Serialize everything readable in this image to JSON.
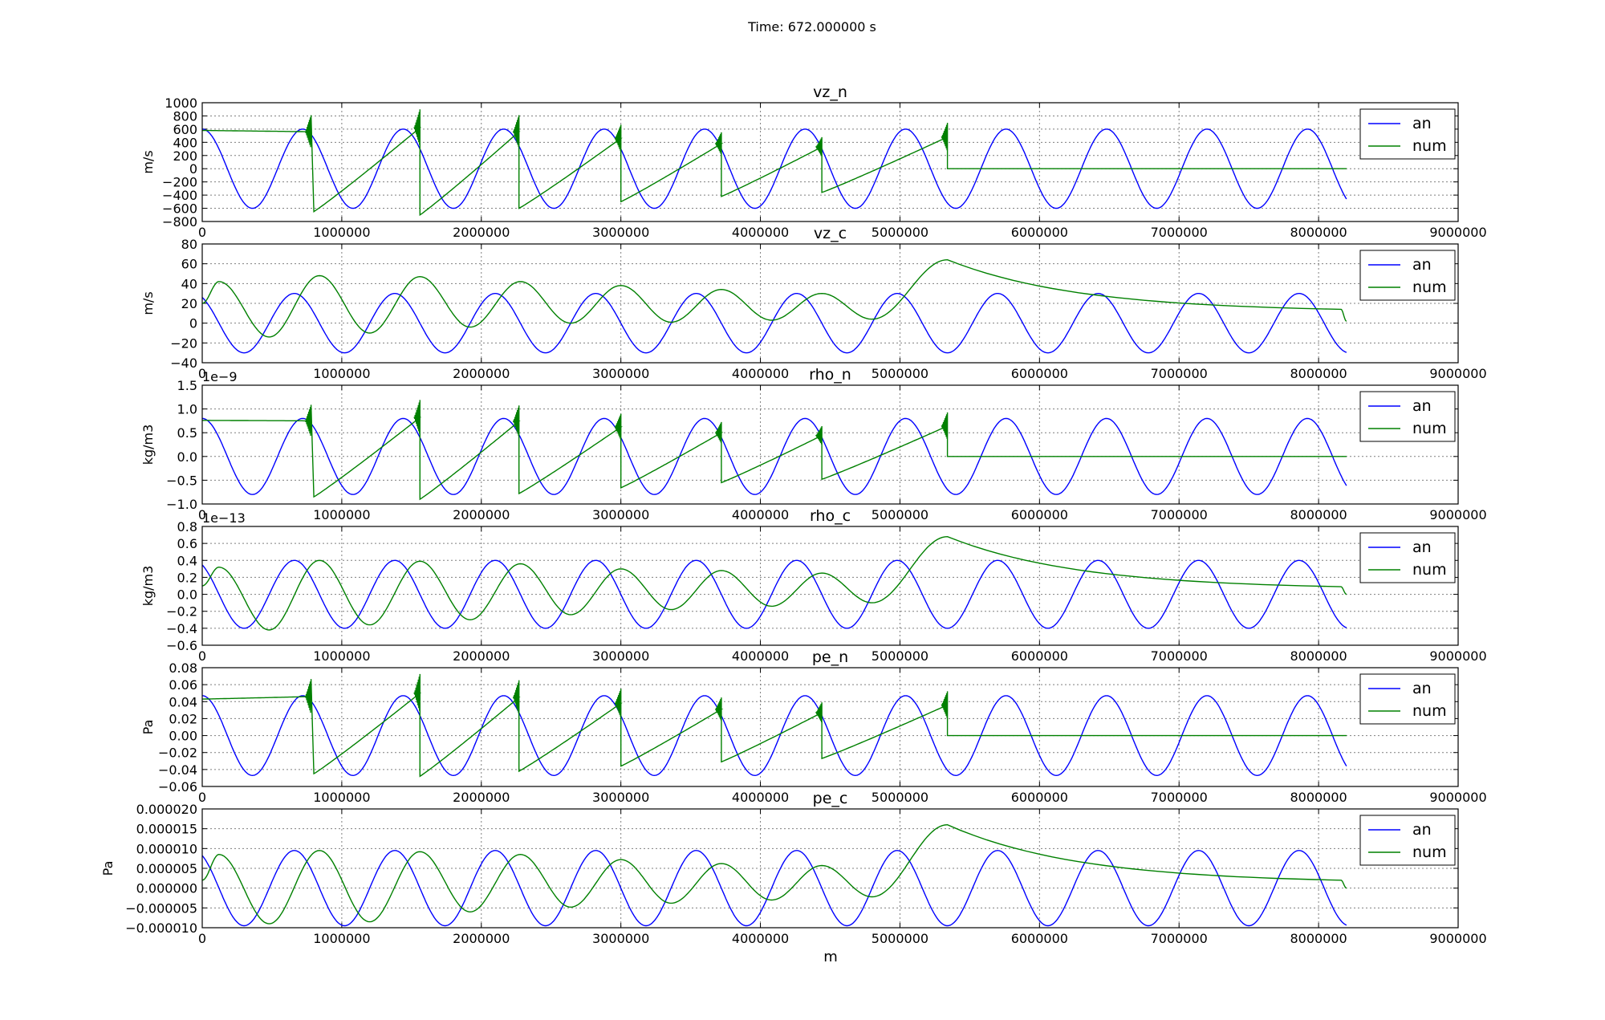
{
  "figure": {
    "suptitle": "Time: 672.000000 s",
    "xlabel": "m",
    "colors": {
      "an": "#0000ff",
      "num": "#008000",
      "grid": "#7f7f7f"
    }
  },
  "chart_data": [
    {
      "type": "line",
      "title": "vz_n",
      "ylabel": "m/s",
      "exponent": "",
      "xlim": [
        0,
        9000000
      ],
      "ylim": [
        -800,
        1000
      ],
      "xticks": [
        "0",
        "1000000",
        "2000000",
        "3000000",
        "4000000",
        "5000000",
        "6000000",
        "7000000",
        "8000000",
        "9000000"
      ],
      "yticks": [
        "−800",
        "−600",
        "−400",
        "−200",
        "0",
        "200",
        "400",
        "600",
        "800",
        "1000"
      ],
      "grid": true,
      "legend": "upper right",
      "series": [
        {
          "name": "an",
          "kind": "sine",
          "amplitude": 600,
          "period": 720000,
          "phase_x": 0,
          "x_end": 8200000
        },
        {
          "name": "num",
          "kind": "sawtooth",
          "segments": [
            {
              "x0": 0,
              "y0": 580,
              "x1": 780000,
              "y1": 560
            },
            {
              "x0": 800000,
              "y0": -650,
              "x1": 1560000,
              "y1": 620
            },
            {
              "x0": 1560000,
              "y0": -700,
              "x1": 2270000,
              "y1": 560
            },
            {
              "x0": 2270000,
              "y0": -600,
              "x1": 3000000,
              "y1": 460
            },
            {
              "x0": 3000000,
              "y0": -500,
              "x1": 3720000,
              "y1": 380
            },
            {
              "x0": 3720000,
              "y0": -420,
              "x1": 4440000,
              "y1": 330
            },
            {
              "x0": 4440000,
              "y0": -360,
              "x1": 5340000,
              "y1": 480
            },
            {
              "x0": 5340000,
              "y0": 0,
              "x1": 8200000,
              "y1": 0
            }
          ]
        }
      ]
    },
    {
      "type": "line",
      "title": "vz_c",
      "ylabel": "m/s",
      "exponent": "",
      "xlim": [
        0,
        9000000
      ],
      "ylim": [
        -40,
        80
      ],
      "xticks": [
        "0",
        "1000000",
        "2000000",
        "3000000",
        "4000000",
        "5000000",
        "6000000",
        "7000000",
        "8000000",
        "9000000"
      ],
      "yticks": [
        "−40",
        "−20",
        "0",
        "20",
        "40",
        "60",
        "80"
      ],
      "grid": true,
      "legend": "upper right",
      "series": [
        {
          "name": "an",
          "kind": "sine",
          "amplitude": 30,
          "period": 720000,
          "phase_x": -60000,
          "x_end": 8200000
        },
        {
          "name": "num",
          "kind": "bumps",
          "points": [
            [
              0,
              20
            ],
            [
              120000,
              42
            ],
            [
              480000,
              -14
            ],
            [
              840000,
              48
            ],
            [
              1200000,
              -10
            ],
            [
              1560000,
              47
            ],
            [
              1920000,
              -4
            ],
            [
              2280000,
              42
            ],
            [
              2640000,
              0
            ],
            [
              3000000,
              38
            ],
            [
              3360000,
              1
            ],
            [
              3720000,
              34
            ],
            [
              4080000,
              3
            ],
            [
              4440000,
              30
            ],
            [
              4800000,
              4
            ],
            [
              5340000,
              64
            ],
            [
              8160000,
              14
            ],
            [
              8200000,
              2
            ]
          ]
        }
      ]
    },
    {
      "type": "line",
      "title": "rho_n",
      "ylabel": "kg/m3",
      "exponent": "1e−9",
      "xlim": [
        0,
        9000000
      ],
      "ylim": [
        -1.0,
        1.5
      ],
      "xticks": [
        "0",
        "1000000",
        "2000000",
        "3000000",
        "4000000",
        "5000000",
        "6000000",
        "7000000",
        "8000000",
        "9000000"
      ],
      "yticks": [
        "−1.0",
        "−0.5",
        "0.0",
        "0.5",
        "1.0",
        "1.5"
      ],
      "grid": true,
      "legend": "upper right",
      "series": [
        {
          "name": "an",
          "kind": "sine",
          "amplitude": 0.8,
          "period": 720000,
          "phase_x": 0,
          "x_end": 8200000
        },
        {
          "name": "num",
          "kind": "sawtooth",
          "segments": [
            {
              "x0": 0,
              "y0": 0.76,
              "x1": 780000,
              "y1": 0.75
            },
            {
              "x0": 800000,
              "y0": -0.85,
              "x1": 1560000,
              "y1": 0.82
            },
            {
              "x0": 1560000,
              "y0": -0.9,
              "x1": 2270000,
              "y1": 0.74
            },
            {
              "x0": 2270000,
              "y0": -0.78,
              "x1": 3000000,
              "y1": 0.62
            },
            {
              "x0": 3000000,
              "y0": -0.66,
              "x1": 3720000,
              "y1": 0.5
            },
            {
              "x0": 3720000,
              "y0": -0.55,
              "x1": 4440000,
              "y1": 0.44
            },
            {
              "x0": 4440000,
              "y0": -0.48,
              "x1": 5340000,
              "y1": 0.64
            },
            {
              "x0": 5340000,
              "y0": 0,
              "x1": 8200000,
              "y1": 0
            }
          ]
        }
      ]
    },
    {
      "type": "line",
      "title": "rho_c",
      "ylabel": "kg/m3",
      "exponent": "1e−13",
      "xlim": [
        0,
        9000000
      ],
      "ylim": [
        -0.6,
        0.8
      ],
      "xticks": [
        "0",
        "1000000",
        "2000000",
        "3000000",
        "4000000",
        "5000000",
        "6000000",
        "7000000",
        "8000000",
        "9000000"
      ],
      "yticks": [
        "−0.6",
        "−0.4",
        "−0.2",
        "0.0",
        "0.2",
        "0.4",
        "0.6",
        "0.8"
      ],
      "grid": true,
      "legend": "upper right",
      "series": [
        {
          "name": "an",
          "kind": "sine",
          "amplitude": 0.4,
          "period": 720000,
          "phase_x": -60000,
          "x_end": 8200000
        },
        {
          "name": "num",
          "kind": "bumps",
          "points": [
            [
              0,
              0.1
            ],
            [
              120000,
              0.32
            ],
            [
              480000,
              -0.42
            ],
            [
              840000,
              0.4
            ],
            [
              1200000,
              -0.36
            ],
            [
              1560000,
              0.39
            ],
            [
              1920000,
              -0.3
            ],
            [
              2280000,
              0.36
            ],
            [
              2640000,
              -0.24
            ],
            [
              3000000,
              0.3
            ],
            [
              3360000,
              -0.18
            ],
            [
              3720000,
              0.28
            ],
            [
              4080000,
              -0.14
            ],
            [
              4440000,
              0.25
            ],
            [
              4800000,
              -0.1
            ],
            [
              5340000,
              0.68
            ],
            [
              8160000,
              0.09
            ],
            [
              8200000,
              0.0
            ]
          ]
        }
      ]
    },
    {
      "type": "line",
      "title": "pe_n",
      "ylabel": "Pa",
      "exponent": "",
      "xlim": [
        0,
        9000000
      ],
      "ylim": [
        -0.06,
        0.08
      ],
      "xticks": [
        "0",
        "1000000",
        "2000000",
        "3000000",
        "4000000",
        "5000000",
        "6000000",
        "7000000",
        "8000000",
        "9000000"
      ],
      "yticks": [
        "−0.06",
        "−0.04",
        "−0.02",
        "0.00",
        "0.02",
        "0.04",
        "0.06",
        "0.08"
      ],
      "grid": true,
      "legend": "upper right",
      "series": [
        {
          "name": "an",
          "kind": "sine",
          "amplitude": 0.047,
          "period": 720000,
          "phase_x": 0,
          "x_end": 8200000
        },
        {
          "name": "num",
          "kind": "sawtooth",
          "segments": [
            {
              "x0": 0,
              "y0": 0.043,
              "x1": 780000,
              "y1": 0.046
            },
            {
              "x0": 800000,
              "y0": -0.045,
              "x1": 1560000,
              "y1": 0.05
            },
            {
              "x0": 1560000,
              "y0": -0.048,
              "x1": 2270000,
              "y1": 0.045
            },
            {
              "x0": 2270000,
              "y0": -0.042,
              "x1": 3000000,
              "y1": 0.038
            },
            {
              "x0": 3000000,
              "y0": -0.036,
              "x1": 3720000,
              "y1": 0.031
            },
            {
              "x0": 3720000,
              "y0": -0.031,
              "x1": 4440000,
              "y1": 0.027
            },
            {
              "x0": 4440000,
              "y0": -0.027,
              "x1": 5340000,
              "y1": 0.036
            },
            {
              "x0": 5340000,
              "y0": 0,
              "x1": 8200000,
              "y1": 0
            }
          ]
        }
      ]
    },
    {
      "type": "line",
      "title": "pe_c",
      "ylabel": "Pa",
      "exponent": "",
      "xlim": [
        0,
        9000000
      ],
      "ylim": [
        -1e-05,
        2e-05
      ],
      "xticks": [
        "0",
        "1000000",
        "2000000",
        "3000000",
        "4000000",
        "5000000",
        "6000000",
        "7000000",
        "8000000",
        "9000000"
      ],
      "yticks": [
        "−0.000010",
        "−0.000005",
        "0.000000",
        "0.000005",
        "0.000010",
        "0.000015",
        "0.000020"
      ],
      "grid": true,
      "legend": "upper right",
      "series": [
        {
          "name": "an",
          "kind": "sine",
          "amplitude": 9.5e-06,
          "period": 720000,
          "phase_x": -60000,
          "x_end": 8200000
        },
        {
          "name": "num",
          "kind": "bumps",
          "points": [
            [
              0,
              2e-06
            ],
            [
              120000,
              8.5e-06
            ],
            [
              480000,
              -9e-06
            ],
            [
              840000,
              9.5e-06
            ],
            [
              1200000,
              -8.5e-06
            ],
            [
              1560000,
              9.2e-06
            ],
            [
              1920000,
              -6e-06
            ],
            [
              2280000,
              8.5e-06
            ],
            [
              2640000,
              -4.8e-06
            ],
            [
              3000000,
              7.2e-06
            ],
            [
              3360000,
              -3.8e-06
            ],
            [
              3720000,
              6.2e-06
            ],
            [
              4080000,
              -3e-06
            ],
            [
              4440000,
              5.7e-06
            ],
            [
              4800000,
              -2.2e-06
            ],
            [
              5340000,
              1.6e-05
            ],
            [
              8160000,
              2e-06
            ],
            [
              8200000,
              0.0
            ]
          ]
        }
      ]
    }
  ]
}
